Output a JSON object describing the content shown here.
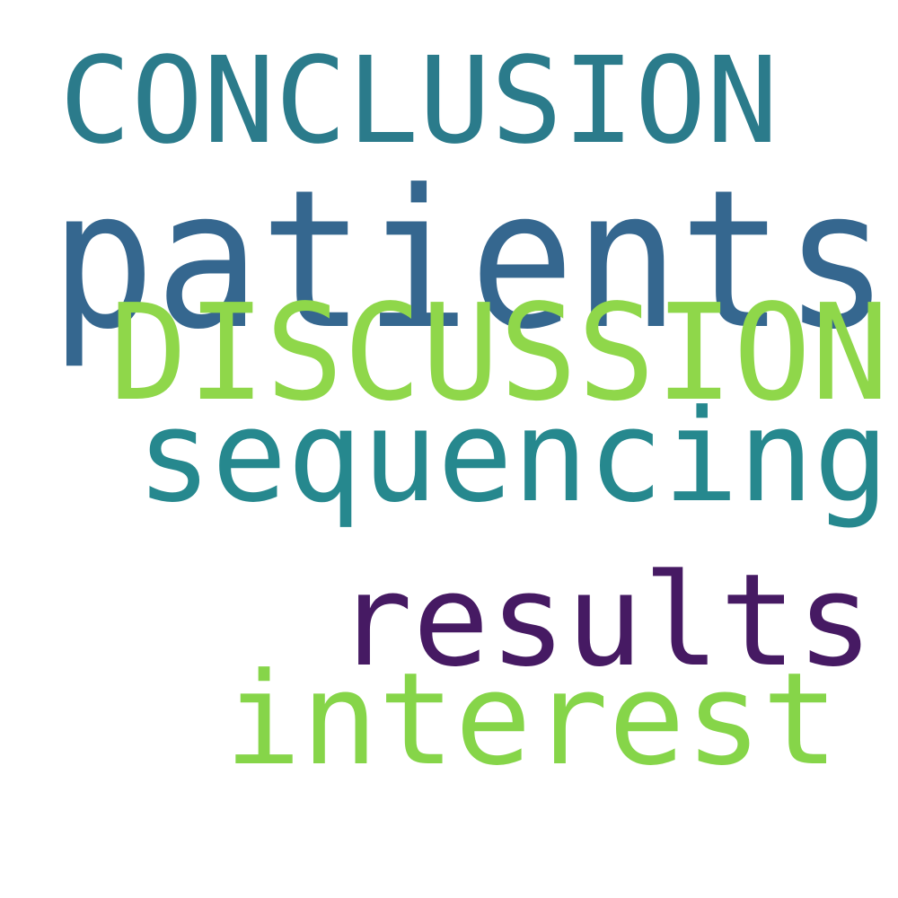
{
  "words": {
    "conclusion": {
      "text": "CONCLUSION",
      "color": "#2b7b8b"
    },
    "patients": {
      "text": "patients",
      "color": "#35678f"
    },
    "discussion": {
      "text": "DISCUSSION",
      "color": "#8fd74a"
    },
    "sequencing": {
      "text": "sequencing",
      "color": "#26888e"
    },
    "results": {
      "text": "results",
      "color": "#461a63"
    },
    "interest": {
      "text": "interest",
      "color": "#86d549"
    }
  }
}
